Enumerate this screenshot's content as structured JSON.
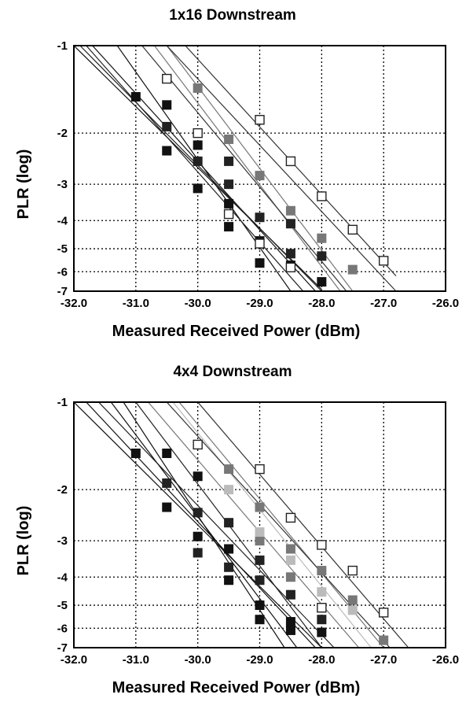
{
  "chart_data": [
    {
      "type": "scatter",
      "title": "1x16 Downstream",
      "xlabel": "Measured Received Power (dBm)",
      "ylabel": "PLR (log)",
      "xlim": [
        -32.0,
        -26.0
      ],
      "ylim": [
        -7,
        -1
      ],
      "y_scale": "log",
      "grid": true,
      "xticks": [
        "-32.0",
        "-31.0",
        "-30.0",
        "-29.0",
        "-28.0",
        "-27.0",
        "-26.0"
      ],
      "yticks": [
        "-1",
        "-2",
        "-3",
        "-4",
        "-5",
        "-6",
        "-7"
      ],
      "series": [
        {
          "color": "#111111",
          "marker": "filled",
          "points": [
            [
              -31.0,
              -1.5
            ],
            [
              -30.5,
              -1.6
            ],
            [
              -30.5,
              -2.3
            ],
            [
              -30.0,
              -2.2
            ],
            [
              -30.0,
              -3.1
            ],
            [
              -29.5,
              -3.5
            ],
            [
              -29.5,
              -4.2
            ],
            [
              -29.0,
              -4.7
            ],
            [
              -29.0,
              -5.6
            ],
            [
              -28.5,
              -5.7
            ],
            [
              -28.0,
              -6.5
            ]
          ],
          "fits": [
            [
              [
                -32.0,
                -1.0
              ],
              [
                -28.0,
                -6.9
              ]
            ],
            [
              [
                -31.7,
                -1.0
              ],
              [
                -28.1,
                -7.0
              ]
            ],
            [
              [
                -31.3,
                -1.0
              ],
              [
                -28.5,
                -7.0
              ]
            ]
          ]
        },
        {
          "color": "#222222",
          "marker": "filled",
          "points": [
            [
              -30.5,
              -1.9
            ],
            [
              -30.0,
              -2.5
            ],
            [
              -29.5,
              -2.5
            ],
            [
              -29.5,
              -3.0
            ],
            [
              -29.0,
              -3.9
            ],
            [
              -28.5,
              -4.1
            ],
            [
              -28.5,
              -5.2
            ],
            [
              -28.0,
              -5.3
            ]
          ],
          "fits": [
            [
              [
                -31.9,
                -1.0
              ],
              [
                -28.0,
                -7.0
              ]
            ],
            [
              [
                -31.8,
                -1.0
              ],
              [
                -28.3,
                -7.0
              ]
            ]
          ]
        },
        {
          "color": "#777777",
          "marker": "filled",
          "points": [
            [
              -30.0,
              -1.4
            ],
            [
              -29.5,
              -2.1
            ],
            [
              -29.0,
              -2.8
            ],
            [
              -28.5,
              -3.7
            ],
            [
              -28.0,
              -4.6
            ],
            [
              -27.5,
              -5.9
            ]
          ],
          "fits": [
            [
              [
                -30.5,
                -1.0
              ],
              [
                -27.5,
                -7.0
              ]
            ],
            [
              [
                -30.7,
                -1.0
              ],
              [
                -27.7,
                -7.0
              ]
            ]
          ]
        },
        {
          "color": "#ffffff",
          "marker": "open",
          "points": [
            [
              -30.5,
              -1.3
            ],
            [
              -30.0,
              -2.0
            ],
            [
              -29.5,
              -3.8
            ],
            [
              -29.0,
              -1.8
            ],
            [
              -29.0,
              -4.8
            ],
            [
              -28.5,
              -2.5
            ],
            [
              -28.5,
              -5.8
            ],
            [
              -28.0,
              -3.3
            ],
            [
              -27.5,
              -4.3
            ],
            [
              -27.0,
              -5.5
            ]
          ],
          "fits": [
            [
              [
                -30.5,
                -1.0
              ],
              [
                -26.8,
                -7.0
              ]
            ],
            [
              [
                -30.2,
                -1.0
              ],
              [
                -26.8,
                -6.2
              ]
            ],
            [
              [
                -30.9,
                -1.0
              ],
              [
                -27.6,
                -7.0
              ]
            ]
          ]
        }
      ]
    },
    {
      "type": "scatter",
      "title": "4x4 Downstream",
      "xlabel": "Measured Received Power (dBm)",
      "ylabel": "PLR (log)",
      "xlim": [
        -32.0,
        -26.0
      ],
      "ylim": [
        -7,
        -1
      ],
      "y_scale": "log",
      "grid": true,
      "xticks": [
        "-32.0",
        "-31.0",
        "-30.0",
        "-29.0",
        "-28.0",
        "-27.0",
        "-26.0"
      ],
      "yticks": [
        "-1",
        "-2",
        "-3",
        "-4",
        "-5",
        "-6",
        "-7"
      ],
      "series": [
        {
          "color": "#111111",
          "marker": "filled",
          "points": [
            [
              -31.0,
              -1.5
            ],
            [
              -30.5,
              -1.5
            ],
            [
              -30.5,
              -2.3
            ],
            [
              -30.0,
              -1.8
            ],
            [
              -30.0,
              -2.9
            ],
            [
              -29.5,
              -3.2
            ],
            [
              -29.5,
              -4.1
            ],
            [
              -29.0,
              -5.0
            ],
            [
              -29.0,
              -5.6
            ],
            [
              -28.5,
              -5.7
            ],
            [
              -28.5,
              -6.1
            ],
            [
              -28.0,
              -6.2
            ]
          ],
          "fits": [
            [
              [
                -32.0,
                -1.0
              ],
              [
                -28.0,
                -7.0
              ]
            ],
            [
              [
                -31.8,
                -1.0
              ],
              [
                -28.1,
                -7.0
              ]
            ],
            [
              [
                -31.4,
                -1.0
              ],
              [
                -28.4,
                -7.0
              ]
            ],
            [
              [
                -31.2,
                -1.0
              ],
              [
                -28.6,
                -7.0
              ]
            ]
          ]
        },
        {
          "color": "#222222",
          "marker": "filled",
          "points": [
            [
              -30.5,
              -1.9
            ],
            [
              -30.0,
              -2.4
            ],
            [
              -30.0,
              -3.3
            ],
            [
              -29.5,
              -2.6
            ],
            [
              -29.5,
              -3.7
            ],
            [
              -29.0,
              -3.5
            ],
            [
              -29.0,
              -4.1
            ],
            [
              -28.5,
              -4.6
            ],
            [
              -28.0,
              -5.6
            ]
          ],
          "fits": [
            [
              [
                -31.6,
                -1.0
              ],
              [
                -27.8,
                -7.0
              ]
            ],
            [
              [
                -31.0,
                -1.0
              ],
              [
                -28.0,
                -7.0
              ]
            ]
          ]
        },
        {
          "color": "#777777",
          "marker": "filled",
          "points": [
            [
              -29.5,
              -1.7
            ],
            [
              -29.0,
              -2.3
            ],
            [
              -29.0,
              -3.0
            ],
            [
              -28.5,
              -3.2
            ],
            [
              -28.5,
              -4.0
            ],
            [
              -28.0,
              -3.8
            ],
            [
              -27.5,
              -4.8
            ],
            [
              -27.0,
              -6.6
            ]
          ],
          "fits": [
            [
              [
                -30.8,
                -1.0
              ],
              [
                -27.4,
                -7.0
              ]
            ],
            [
              [
                -30.3,
                -1.0
              ],
              [
                -27.0,
                -7.0
              ]
            ]
          ]
        },
        {
          "color": "#bbbbbb",
          "marker": "filled",
          "points": [
            [
              -29.5,
              -2.0
            ],
            [
              -29.0,
              -2.8
            ],
            [
              -28.5,
              -3.5
            ],
            [
              -28.0,
              -4.5
            ],
            [
              -27.5,
              -5.2
            ]
          ],
          "fits": [
            [
              [
                -30.4,
                -1.0
              ],
              [
                -27.2,
                -7.0
              ]
            ]
          ]
        },
        {
          "color": "#ffffff",
          "marker": "open",
          "points": [
            [
              -30.0,
              -1.4
            ],
            [
              -29.0,
              -1.7
            ],
            [
              -28.5,
              -2.5
            ],
            [
              -28.0,
              -3.1
            ],
            [
              -28.0,
              -5.1
            ],
            [
              -27.5,
              -3.8
            ],
            [
              -27.0,
              -5.3
            ]
          ],
          "fits": [
            [
              [
                -30.0,
                -1.0
              ],
              [
                -26.6,
                -7.0
              ]
            ],
            [
              [
                -30.5,
                -1.0
              ],
              [
                -26.9,
                -7.0
              ]
            ]
          ]
        }
      ]
    }
  ]
}
